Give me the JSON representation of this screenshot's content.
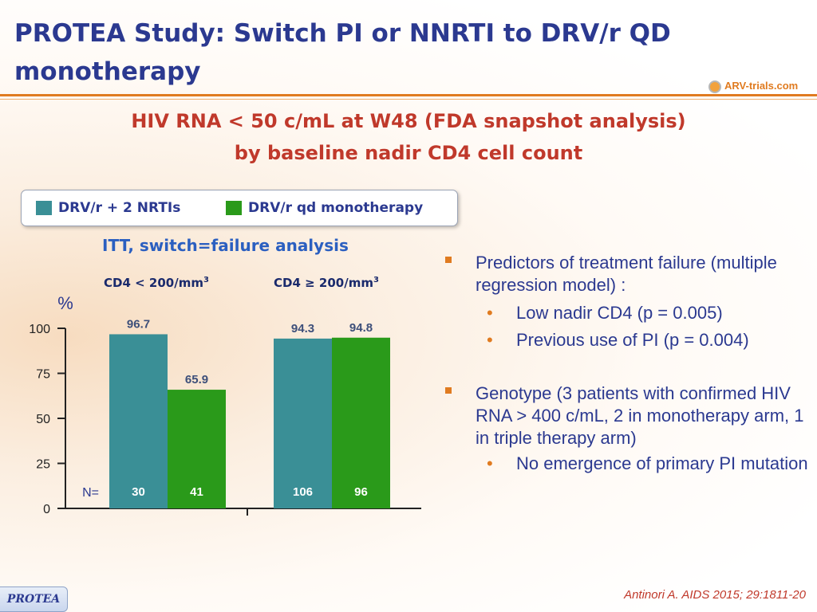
{
  "title": "PROTEA Study: Switch PI or NNRTI to DRV/r QD monotherapy",
  "logo_text": "ARV-trials.com",
  "subtitle_line1": "HIV RNA < 50 c/mL at W48 (FDA snapshot analysis)",
  "subtitle_line2": "by baseline nadir CD4 cell count",
  "legend": [
    {
      "label": "DRV/r + 2 NRTIs",
      "color": "#3a8f96"
    },
    {
      "label": "DRV/r qd monotherapy",
      "color": "#2a9a1a"
    }
  ],
  "analysis_label": "ITT, switch=failure analysis",
  "groups": [
    {
      "label": "CD4 < 200/mm",
      "sup": "3"
    },
    {
      "label": "CD4 ≥ 200/mm",
      "sup": "3"
    }
  ],
  "chart_data": {
    "type": "bar",
    "ylabel": "%",
    "ylim": [
      0,
      100
    ],
    "yticks": [
      0,
      25,
      50,
      75,
      100
    ],
    "categories": [
      "CD4 < 200/mm3",
      "CD4 ≥ 200/mm3"
    ],
    "series": [
      {
        "name": "DRV/r + 2 NRTIs",
        "color": "#3a8f96",
        "values": [
          96.7,
          94.3
        ],
        "n": [
          30,
          106
        ]
      },
      {
        "name": "DRV/r qd monotherapy",
        "color": "#2a9a1a",
        "values": [
          65.9,
          94.8
        ],
        "n": [
          41,
          96
        ]
      }
    ],
    "n_label": "N="
  },
  "bullets": [
    {
      "text": "Predictors of treatment failure (multiple regression model) :",
      "sub": [
        "Low nadir CD4 (p = 0.005)",
        "Previous use of PI (p = 0.004)"
      ]
    },
    {
      "text": "Genotype (3 patients with confirmed HIV RNA > 400 c/mL, 2 in monotherapy arm, 1 in triple therapy arm)",
      "sub": [
        "No emergence of primary PI mutation"
      ]
    }
  ],
  "citation": "Antinori A. AIDS 2015; 29:1811-20",
  "footer_tag": "PROTEA"
}
